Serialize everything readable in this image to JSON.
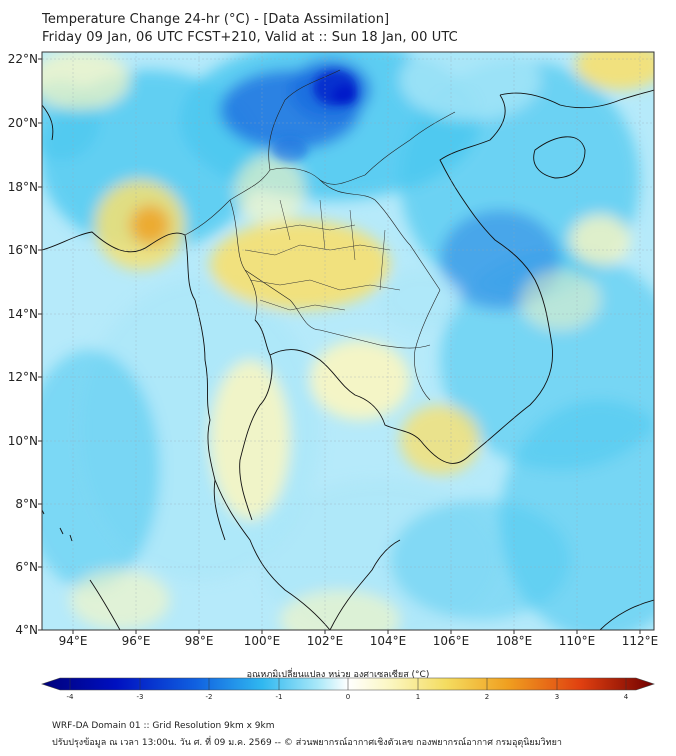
{
  "header": {
    "title": "Temperature Change 24-hr (°C) - [Data Assimilation]",
    "subtitle": "Friday 09 Jan, 06 UTC FCST+210, Valid at :: Sun 18 Jan, 00 UTC"
  },
  "map": {
    "y_ticks": [
      "22°N",
      "20°N",
      "18°N",
      "16°N",
      "14°N",
      "12°N",
      "10°N",
      "8°N",
      "6°N",
      "4°N"
    ],
    "x_ticks": [
      "94°E",
      "96°E",
      "98°E",
      "100°E",
      "102°E",
      "104°E",
      "106°E",
      "108°E",
      "110°E",
      "112°E"
    ],
    "colors": {
      "strong_cool": "#0018c8",
      "mid_cool": "#1e6fe0",
      "cool": "#4cc8f0",
      "light_cool": "#a8e6f8",
      "neutral": "#ffffff",
      "light_warm": "#fbf6c0",
      "warm": "#f7e070",
      "hot": "#f0a020"
    }
  },
  "colorbar": {
    "title": "อุณหภูมิเปลี่ยนแปลง หน่วย องศาเซลเซียส (°C)",
    "labels": [
      "-4",
      "-3",
      "-2",
      "-1",
      "0",
      "1",
      "2",
      "3",
      "4"
    ]
  },
  "footer": {
    "line1": "WRF-DA Domain 01 :: Grid Resolution 9km x 9km",
    "line2": "ปรับปรุงข้อมูล ณ เวลา 13:00น. วัน ศ. ที่ 09 ม.ค. 2569 -- © ส่วนพยากรณ์อากาศเชิงตัวเลข กองพยากรณ์อากาศ กรมอุตุนิยมวิทยา"
  }
}
